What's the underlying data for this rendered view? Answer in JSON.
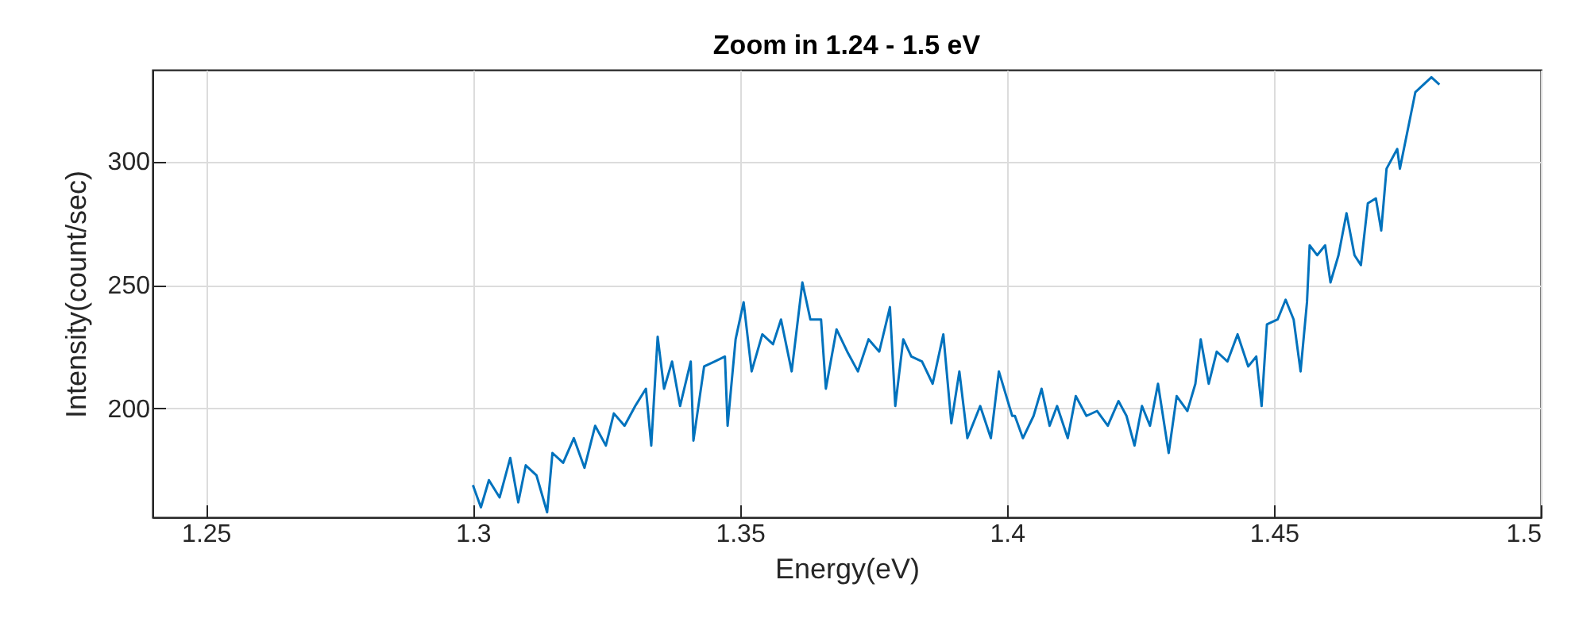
{
  "chart_data": {
    "type": "line",
    "title": "Zoom in 1.24 - 1.5 eV",
    "xlabel": "Energy(eV)",
    "ylabel": "Intensity(count/sec)",
    "xlim": [
      1.24,
      1.5
    ],
    "xticks": [
      1.25,
      1.3,
      1.35,
      1.4,
      1.45,
      1.5
    ],
    "ylim": [
      156,
      337
    ],
    "yticks": [
      200,
      250,
      300
    ],
    "grid": true,
    "x": [
      1.3,
      1.3015,
      1.303,
      1.305,
      1.307,
      1.3085,
      1.3099,
      1.3119,
      1.3139,
      1.3149,
      1.3169,
      1.3189,
      1.3209,
      1.3229,
      1.3249,
      1.3264,
      1.3284,
      1.3304,
      1.3324,
      1.3334,
      1.3346,
      1.3358,
      1.3373,
      1.3388,
      1.3408,
      1.3413,
      1.3433,
      1.3453,
      1.3472,
      1.3477,
      1.3492,
      1.3507,
      1.3522,
      1.3542,
      1.3562,
      1.3577,
      1.3597,
      1.3617,
      1.3632,
      1.3652,
      1.3661,
      1.3681,
      1.3701,
      1.3721,
      1.3741,
      1.3761,
      1.3781,
      1.3791,
      1.3806,
      1.3821,
      1.3841,
      1.3861,
      1.3881,
      1.3896,
      1.3911,
      1.3926,
      1.395,
      1.397,
      1.3985,
      1.401,
      1.4015,
      1.403,
      1.405,
      1.4065,
      1.408,
      1.4094,
      1.4114,
      1.4129,
      1.4149,
      1.4169,
      1.4189,
      1.4209,
      1.4224,
      1.4239,
      1.4253,
      1.4268,
      1.4283,
      1.4303,
      1.4318,
      1.4338,
      1.4353,
      1.4363,
      1.4378,
      1.4393,
      1.4413,
      1.4432,
      1.4452,
      1.4467,
      1.4477,
      1.4487,
      1.4507,
      1.4522,
      1.4537,
      1.455,
      1.4562,
      1.4567,
      1.4581,
      1.4596,
      1.4606,
      1.4621,
      1.4636,
      1.4651,
      1.4663,
      1.4676,
      1.4691,
      1.4701,
      1.4711,
      1.4731,
      1.4736,
      1.4765,
      1.4795,
      1.481
    ],
    "series": [
      {
        "color": "#0072bd",
        "values": [
          169,
          160,
          171,
          164,
          180,
          162,
          177,
          173,
          158,
          182,
          178,
          188,
          176,
          193,
          185,
          198,
          193,
          201,
          208,
          185,
          229,
          208,
          219,
          201,
          219,
          187,
          217,
          219,
          221,
          193,
          228,
          243,
          215,
          230,
          226,
          236,
          215,
          251,
          236,
          236,
          208,
          232,
          223,
          215,
          228,
          223,
          241,
          201,
          228,
          221,
          219,
          210,
          230,
          194,
          215,
          188,
          201,
          188,
          215,
          197,
          197,
          188,
          197,
          208,
          193,
          201,
          188,
          205,
          197,
          199,
          193,
          203,
          197,
          185,
          201,
          193,
          210,
          182,
          205,
          199,
          210,
          228,
          210,
          223,
          219,
          230,
          217,
          221,
          201,
          234,
          236,
          244,
          236,
          215,
          243,
          266,
          262,
          266,
          251,
          262,
          279,
          262,
          258,
          283,
          285,
          272,
          297,
          305,
          297,
          328,
          334,
          331
        ]
      }
    ]
  }
}
